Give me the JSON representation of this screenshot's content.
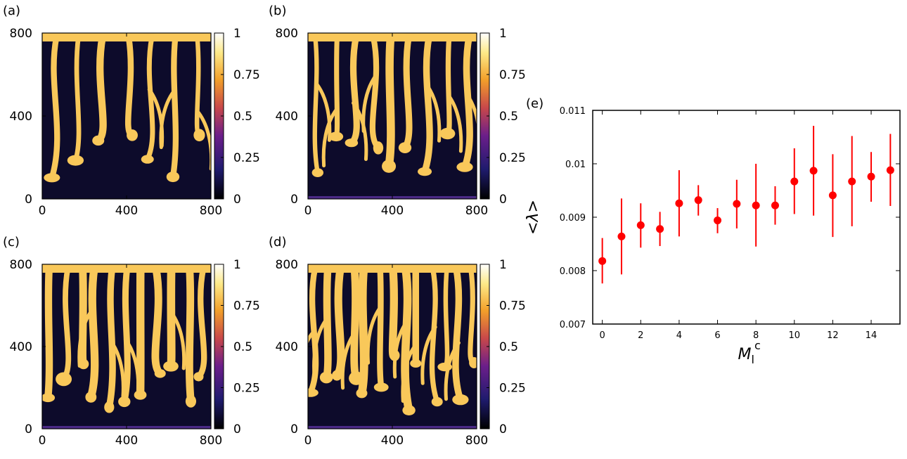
{
  "panels": [
    {
      "label": "(a)",
      "x_ticks": [
        "0",
        "400",
        "800"
      ],
      "y_ticks": [
        "0",
        "400",
        "800"
      ],
      "colorbar_ticks": [
        "1",
        "0.75",
        "0.5",
        "0.25",
        "0"
      ],
      "colors": {
        "background": "#0d0b2b",
        "dendrite": "#f9c85a",
        "colorbar": [
          "#000000",
          "#1f1b6e",
          "#6b1e8a",
          "#c8484a",
          "#f2a02a",
          "#fde987",
          "#ffffff"
        ]
      }
    },
    {
      "label": "(b)",
      "x_ticks": [
        "0",
        "400",
        "800"
      ],
      "y_ticks": [
        "0",
        "400",
        "800"
      ],
      "colorbar_ticks": [
        "1",
        "0.75",
        "0.5",
        "0.25",
        "0"
      ]
    },
    {
      "label": "(c)",
      "x_ticks": [
        "0",
        "400",
        "800"
      ],
      "y_ticks": [
        "0",
        "400",
        "800"
      ],
      "colorbar_ticks": [
        "1",
        "0.75",
        "0.5",
        "0.25",
        "0"
      ]
    },
    {
      "label": "(d)",
      "x_ticks": [
        "0",
        "400",
        "800"
      ],
      "y_ticks": [
        "0",
        "400",
        "800"
      ],
      "colorbar_ticks": [
        "1",
        "0.75",
        "0.5",
        "0.25",
        "0"
      ]
    }
  ],
  "chart_data": [
    {
      "type": "heatmap",
      "panel": "(a)",
      "xlim": [
        0,
        800
      ],
      "ylim": [
        0,
        800
      ],
      "colorbar_range": [
        0,
        1
      ],
      "x_ticks": [
        0,
        400,
        800
      ],
      "y_ticks": [
        0,
        400,
        800
      ],
      "colorbar_ticks": [
        0,
        0.25,
        0.5,
        0.75,
        1
      ]
    },
    {
      "type": "heatmap",
      "panel": "(b)",
      "xlim": [
        0,
        800
      ],
      "ylim": [
        0,
        800
      ],
      "colorbar_range": [
        0,
        1
      ],
      "x_ticks": [
        0,
        400,
        800
      ],
      "y_ticks": [
        0,
        400,
        800
      ],
      "colorbar_ticks": [
        0,
        0.25,
        0.5,
        0.75,
        1
      ]
    },
    {
      "type": "heatmap",
      "panel": "(c)",
      "xlim": [
        0,
        800
      ],
      "ylim": [
        0,
        800
      ],
      "colorbar_range": [
        0,
        1
      ],
      "x_ticks": [
        0,
        400,
        800
      ],
      "y_ticks": [
        0,
        400,
        800
      ],
      "colorbar_ticks": [
        0,
        0.25,
        0.5,
        0.75,
        1
      ]
    },
    {
      "type": "heatmap",
      "panel": "(d)",
      "xlim": [
        0,
        800
      ],
      "ylim": [
        0,
        800
      ],
      "colorbar_range": [
        0,
        1
      ],
      "x_ticks": [
        0,
        400,
        800
      ],
      "y_ticks": [
        0,
        400,
        800
      ],
      "colorbar_ticks": [
        0,
        0.25,
        0.5,
        0.75,
        1
      ]
    },
    {
      "type": "scatter",
      "panel": "(e)",
      "label": "(e)",
      "xlabel": "M",
      "xlabel_subscript": "l",
      "xlabel_superscript": "c",
      "ylabel": "<λ>",
      "xlim": [
        -0.5,
        15.5
      ],
      "ylim": [
        0.007,
        0.011
      ],
      "x_ticks": [
        0,
        2,
        4,
        6,
        8,
        10,
        12,
        14
      ],
      "y_ticks": [
        0.007,
        0.008,
        0.009,
        0.01,
        0.011
      ],
      "x_tick_labels": [
        "0",
        "2",
        "4",
        "6",
        "8",
        "10",
        "12",
        "14"
      ],
      "y_tick_labels": [
        "0.007",
        "0.008",
        "0.009",
        "0.01",
        "0.011"
      ],
      "marker_color": "#ff0000",
      "grid": false,
      "x": [
        0,
        1,
        2,
        3,
        4,
        5,
        6,
        7,
        8,
        9,
        10,
        11,
        12,
        13,
        14,
        15
      ],
      "y": [
        0.00818,
        0.00864,
        0.00885,
        0.00878,
        0.00926,
        0.00932,
        0.00894,
        0.00925,
        0.00922,
        0.00922,
        0.00967,
        0.00987,
        0.00941,
        0.00967,
        0.00976,
        0.00988
      ],
      "err_low": [
        0.00776,
        0.00793,
        0.00843,
        0.00846,
        0.00864,
        0.00903,
        0.0087,
        0.00879,
        0.00845,
        0.00886,
        0.00906,
        0.00903,
        0.00863,
        0.00883,
        0.00929,
        0.00921
      ],
      "err_high": [
        0.00861,
        0.00935,
        0.00926,
        0.0091,
        0.00988,
        0.0096,
        0.00917,
        0.0097,
        0.01,
        0.00958,
        0.01029,
        0.01071,
        0.01018,
        0.01052,
        0.01022,
        0.01056
      ]
    }
  ]
}
